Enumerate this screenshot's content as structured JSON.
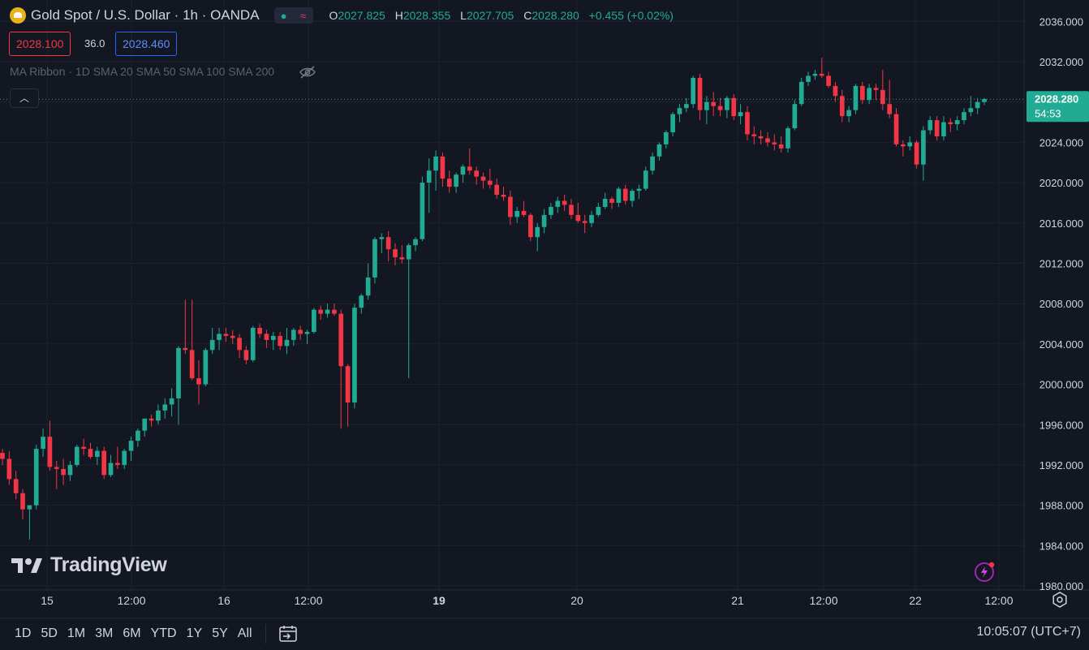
{
  "header": {
    "title": "Gold Spot / U.S. Dollar · 1h · OANDA",
    "ohlc": {
      "open_label": "O",
      "open": "2027.825",
      "high_label": "H",
      "high": "2028.355",
      "low_label": "L",
      "low": "2027.705",
      "close_label": "C",
      "close": "2028.280",
      "change": "+0.455 (+0.02%)"
    }
  },
  "trade": {
    "bid": "2028.100",
    "spread": "36.0",
    "ask": "2028.460"
  },
  "indicator": {
    "label": "MA Ribbon · 1D SMA 20 SMA 50 SMA 100 SMA 200"
  },
  "price_label": {
    "price": "2028.280",
    "countdown": "54:53"
  },
  "branding": {
    "name": "TradingView"
  },
  "time_ranges": [
    "1D",
    "5D",
    "1M",
    "3M",
    "6M",
    "YTD",
    "1Y",
    "5Y",
    "All"
  ],
  "status": {
    "clock": "10:05:07 (UTC+7)"
  },
  "colors": {
    "up": "#22ab94",
    "down": "#f23645",
    "background": "#131722",
    "grid": "#1e222d",
    "text": "#d1d4dc"
  },
  "chart_data": {
    "type": "candlestick",
    "y_axis": {
      "ticks": [
        "2036.000",
        "2032.000",
        "2028.000",
        "2024.000",
        "2020.000",
        "2016.000",
        "2012.000",
        "2008.000",
        "2004.000",
        "2000.000",
        "1996.000",
        "1992.000",
        "1988.000",
        "1984.000",
        "1980.000"
      ],
      "range": [
        1979.6,
        2037.8
      ]
    },
    "x_axis": {
      "ticks": [
        "15",
        "12:00",
        "16",
        "12:00",
        "19",
        "20",
        "21",
        "12:00",
        "22",
        "12:00"
      ],
      "bold": [
        "19"
      ]
    },
    "last_price": 2028.28,
    "candles": [
      [
        1993.2,
        1993.6,
        1992.0,
        1992.6
      ],
      [
        1992.6,
        1993.4,
        1990.0,
        1990.6
      ],
      [
        1990.6,
        1991.4,
        1988.6,
        1989.2
      ],
      [
        1989.2,
        1989.6,
        1986.6,
        1987.6
      ],
      [
        1987.6,
        1988.0,
        1984.6,
        1988.0
      ],
      [
        1988.0,
        1994.0,
        1987.6,
        1993.6
      ],
      [
        1993.6,
        1995.6,
        1992.8,
        1994.8
      ],
      [
        1994.8,
        1996.4,
        1991.4,
        1991.8
      ],
      [
        1991.8,
        1992.4,
        1989.6,
        1991.6
      ],
      [
        1991.6,
        1992.6,
        1990.0,
        1991.0
      ],
      [
        1991.0,
        1992.4,
        1990.4,
        1992.0
      ],
      [
        1992.0,
        1994.0,
        1991.8,
        1993.8
      ],
      [
        1993.8,
        1994.6,
        1993.0,
        1993.6
      ],
      [
        1993.6,
        1994.2,
        1992.6,
        1992.8
      ],
      [
        1992.8,
        1993.8,
        1992.0,
        1993.4
      ],
      [
        1993.4,
        1993.8,
        1990.6,
        1991.0
      ],
      [
        1991.0,
        1993.0,
        1990.8,
        1992.2
      ],
      [
        1992.2,
        1993.8,
        1991.6,
        1992.0
      ],
      [
        1992.0,
        1993.6,
        1991.6,
        1993.4
      ],
      [
        1993.4,
        1994.8,
        1992.4,
        1994.4
      ],
      [
        1994.4,
        1995.6,
        1993.8,
        1995.4
      ],
      [
        1995.4,
        1996.6,
        1994.8,
        1996.6
      ],
      [
        1996.6,
        1997.0,
        1995.8,
        1996.4
      ],
      [
        1996.4,
        1998.0,
        1996.0,
        1997.4
      ],
      [
        1997.4,
        1998.6,
        1996.6,
        1998.0
      ],
      [
        1998.0,
        1999.6,
        1996.8,
        1998.6
      ],
      [
        1998.6,
        2003.8,
        1996.0,
        2003.6
      ],
      [
        2003.6,
        2008.4,
        2003.0,
        2003.4
      ],
      [
        2003.4,
        2008.4,
        2000.4,
        2000.6
      ],
      [
        2000.6,
        2002.4,
        1998.0,
        2000.0
      ],
      [
        2000.0,
        2003.6,
        1999.8,
        2003.4
      ],
      [
        2003.4,
        2005.6,
        2003.0,
        2004.4
      ],
      [
        2004.4,
        2005.6,
        2003.4,
        2005.0
      ],
      [
        2005.0,
        2005.6,
        2004.2,
        2004.8
      ],
      [
        2004.8,
        2005.4,
        2004.0,
        2004.6
      ],
      [
        2004.6,
        2005.0,
        2002.6,
        2003.4
      ],
      [
        2003.4,
        2003.8,
        2002.0,
        2002.4
      ],
      [
        2002.4,
        2005.8,
        2002.2,
        2005.6
      ],
      [
        2005.6,
        2006.0,
        2004.6,
        2005.0
      ],
      [
        2005.0,
        2005.4,
        2003.6,
        2004.4
      ],
      [
        2004.4,
        2005.2,
        2003.4,
        2004.8
      ],
      [
        2004.8,
        2005.2,
        2003.4,
        2003.8
      ],
      [
        2003.8,
        2005.6,
        2003.0,
        2004.4
      ],
      [
        2004.4,
        2005.6,
        2003.8,
        2005.4
      ],
      [
        2005.4,
        2005.8,
        2004.4,
        2005.0
      ],
      [
        2005.0,
        2005.4,
        2004.0,
        2005.2
      ],
      [
        2005.2,
        2007.6,
        2005.0,
        2007.4
      ],
      [
        2007.4,
        2007.8,
        2006.4,
        2007.0
      ],
      [
        2007.0,
        2008.0,
        2006.6,
        2007.4
      ],
      [
        2007.4,
        2008.0,
        2006.8,
        2007.0
      ],
      [
        2007.0,
        2007.4,
        1995.6,
        2001.8
      ],
      [
        2001.8,
        2002.0,
        1995.8,
        1998.2
      ],
      [
        1998.2,
        2008.0,
        1997.6,
        2007.6
      ],
      [
        2007.6,
        2009.0,
        2007.0,
        2008.8
      ],
      [
        2008.8,
        2012.0,
        2008.4,
        2010.6
      ],
      [
        2010.6,
        2014.6,
        2010.0,
        2014.4
      ],
      [
        2014.4,
        2015.0,
        2013.0,
        2014.6
      ],
      [
        2014.6,
        2015.2,
        2012.2,
        2013.4
      ],
      [
        2013.4,
        2014.0,
        2011.8,
        2012.6
      ],
      [
        2012.6,
        2013.8,
        2012.0,
        2012.4
      ],
      [
        2012.4,
        2014.0,
        2000.6,
        2013.8
      ],
      [
        2013.8,
        2014.6,
        2013.2,
        2014.4
      ],
      [
        2014.4,
        2020.6,
        2014.2,
        2020.0
      ],
      [
        2020.0,
        2022.4,
        2017.0,
        2021.2
      ],
      [
        2021.2,
        2023.2,
        2019.2,
        2022.6
      ],
      [
        2022.6,
        2023.0,
        2019.6,
        2020.4
      ],
      [
        2020.4,
        2021.2,
        2019.0,
        2019.6
      ],
      [
        2019.6,
        2021.0,
        2019.0,
        2020.8
      ],
      [
        2020.8,
        2021.8,
        2020.0,
        2021.6
      ],
      [
        2021.6,
        2023.4,
        2020.8,
        2021.2
      ],
      [
        2021.2,
        2021.6,
        2019.8,
        2020.6
      ],
      [
        2020.6,
        2021.0,
        2019.4,
        2020.2
      ],
      [
        2020.2,
        2021.4,
        2019.4,
        2019.8
      ],
      [
        2019.8,
        2020.4,
        2018.4,
        2018.8
      ],
      [
        2018.8,
        2019.6,
        2018.2,
        2018.6
      ],
      [
        2018.6,
        2019.2,
        2015.8,
        2016.6
      ],
      [
        2016.6,
        2017.6,
        2016.0,
        2017.2
      ],
      [
        2017.2,
        2018.2,
        2016.6,
        2016.8
      ],
      [
        2016.8,
        2017.0,
        2014.2,
        2014.6
      ],
      [
        2014.6,
        2016.0,
        2013.2,
        2015.6
      ],
      [
        2015.6,
        2017.4,
        2015.0,
        2016.8
      ],
      [
        2016.8,
        2018.0,
        2016.4,
        2017.6
      ],
      [
        2017.6,
        2018.6,
        2017.0,
        2018.2
      ],
      [
        2018.2,
        2018.8,
        2017.2,
        2017.8
      ],
      [
        2017.8,
        2018.4,
        2016.4,
        2016.8
      ],
      [
        2016.8,
        2018.0,
        2016.0,
        2016.2
      ],
      [
        2016.2,
        2016.8,
        2015.0,
        2016.0
      ],
      [
        2016.0,
        2017.2,
        2015.6,
        2016.8
      ],
      [
        2016.8,
        2018.0,
        2016.6,
        2017.6
      ],
      [
        2017.6,
        2019.0,
        2017.4,
        2018.4
      ],
      [
        2018.4,
        2018.6,
        2017.4,
        2018.0
      ],
      [
        2018.0,
        2019.6,
        2017.6,
        2019.4
      ],
      [
        2019.4,
        2019.8,
        2017.8,
        2018.2
      ],
      [
        2018.2,
        2019.4,
        2017.6,
        2019.2
      ],
      [
        2019.2,
        2019.8,
        2018.4,
        2019.4
      ],
      [
        2019.4,
        2021.6,
        2019.2,
        2021.2
      ],
      [
        2021.2,
        2023.0,
        2020.8,
        2022.6
      ],
      [
        2022.6,
        2024.0,
        2022.2,
        2023.8
      ],
      [
        2023.8,
        2025.2,
        2023.4,
        2025.0
      ],
      [
        2025.0,
        2027.0,
        2024.6,
        2026.8
      ],
      [
        2026.8,
        2027.8,
        2026.0,
        2027.4
      ],
      [
        2027.4,
        2028.4,
        2027.0,
        2027.8
      ],
      [
        2027.8,
        2030.6,
        2027.4,
        2030.4
      ],
      [
        2030.4,
        2030.8,
        2026.2,
        2027.2
      ],
      [
        2027.2,
        2028.6,
        2025.8,
        2028.0
      ],
      [
        2028.0,
        2029.0,
        2026.6,
        2027.6
      ],
      [
        2027.6,
        2028.4,
        2026.6,
        2027.2
      ],
      [
        2027.2,
        2028.6,
        2026.4,
        2028.4
      ],
      [
        2028.4,
        2028.8,
        2026.2,
        2026.6
      ],
      [
        2026.6,
        2027.8,
        2025.8,
        2027.0
      ],
      [
        2027.0,
        2027.6,
        2024.2,
        2024.8
      ],
      [
        2024.8,
        2025.6,
        2023.8,
        2024.6
      ],
      [
        2024.6,
        2025.2,
        2023.8,
        2024.4
      ],
      [
        2024.4,
        2025.0,
        2023.6,
        2024.0
      ],
      [
        2024.0,
        2024.8,
        2023.2,
        2023.8
      ],
      [
        2023.8,
        2024.6,
        2023.0,
        2023.4
      ],
      [
        2023.4,
        2025.6,
        2023.0,
        2025.4
      ],
      [
        2025.4,
        2028.2,
        2025.2,
        2027.8
      ],
      [
        2027.8,
        2030.4,
        2027.6,
        2030.0
      ],
      [
        2030.0,
        2031.0,
        2029.6,
        2030.6
      ],
      [
        2030.6,
        2031.2,
        2030.2,
        2030.8
      ],
      [
        2030.8,
        2032.4,
        2030.4,
        2030.6
      ],
      [
        2030.6,
        2031.0,
        2029.4,
        2029.6
      ],
      [
        2029.6,
        2030.0,
        2028.0,
        2028.6
      ],
      [
        2028.6,
        2029.2,
        2026.0,
        2026.6
      ],
      [
        2026.6,
        2027.6,
        2026.0,
        2027.2
      ],
      [
        2027.2,
        2029.8,
        2026.8,
        2029.6
      ],
      [
        2029.6,
        2030.0,
        2027.8,
        2028.2
      ],
      [
        2028.2,
        2029.8,
        2027.8,
        2029.4
      ],
      [
        2029.4,
        2029.8,
        2028.2,
        2029.2
      ],
      [
        2029.2,
        2031.2,
        2027.2,
        2027.8
      ],
      [
        2027.8,
        2030.2,
        2026.4,
        2026.8
      ],
      [
        2026.8,
        2027.4,
        2023.6,
        2023.8
      ],
      [
        2023.8,
        2024.2,
        2022.6,
        2023.6
      ],
      [
        2023.6,
        2024.6,
        2023.2,
        2024.0
      ],
      [
        2024.0,
        2024.2,
        2021.4,
        2021.8
      ],
      [
        2021.8,
        2025.6,
        2020.2,
        2025.2
      ],
      [
        2025.2,
        2026.6,
        2024.8,
        2026.2
      ],
      [
        2026.2,
        2026.6,
        2024.2,
        2024.6
      ],
      [
        2024.6,
        2026.6,
        2024.2,
        2026.0
      ],
      [
        2026.0,
        2026.4,
        2025.0,
        2025.8
      ],
      [
        2025.8,
        2026.6,
        2025.2,
        2026.2
      ],
      [
        2026.2,
        2027.4,
        2025.8,
        2027.0
      ],
      [
        2027.0,
        2028.6,
        2026.6,
        2027.4
      ],
      [
        2027.4,
        2028.4,
        2026.8,
        2028.0
      ],
      [
        2028.0,
        2028.4,
        2027.7,
        2028.3
      ]
    ]
  }
}
